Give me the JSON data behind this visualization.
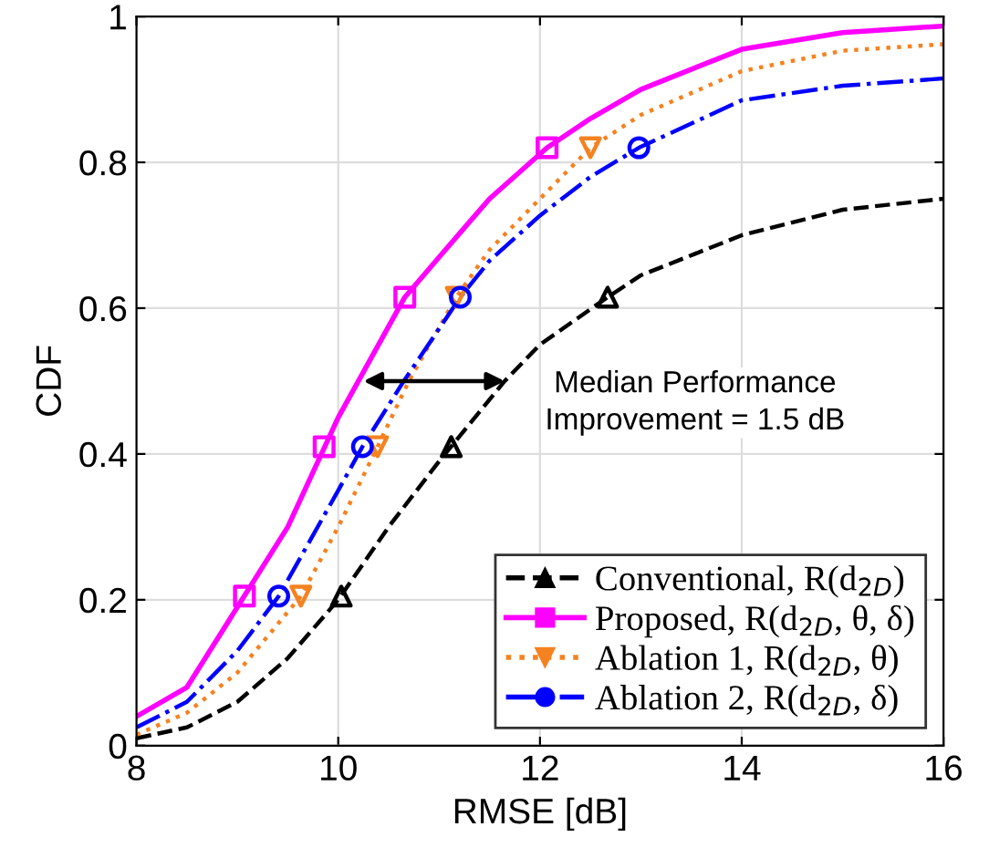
{
  "chart_data": {
    "type": "line",
    "xlabel": "RMSE [dB]",
    "ylabel": "CDF",
    "xlim": [
      8,
      16
    ],
    "ylim": [
      0,
      1
    ],
    "xticks": [
      8,
      10,
      12,
      14,
      16
    ],
    "yticks": [
      0,
      0.2,
      0.4,
      0.6,
      0.8,
      1
    ],
    "grid": true,
    "legend": "bottom right",
    "annotations": [
      {
        "text": "Median Performance\nImprovement = 1.5 dB",
        "x": 11.7,
        "y": 0.5
      }
    ],
    "series": [
      {
        "name": "Conventional, R(d$_{2D}$)",
        "color": "#000000",
        "line_style": "dashed",
        "x": [
          8,
          8.5,
          9,
          9.5,
          10,
          10.5,
          11,
          11.65,
          12,
          12.67,
          13,
          14,
          15,
          16
        ],
        "values": [
          0.01,
          0.025,
          0.06,
          0.12,
          0.2,
          0.3,
          0.39,
          0.5,
          0.55,
          0.615,
          0.645,
          0.7,
          0.735,
          0.75
        ]
      },
      {
        "name": "Proposed, R(d$_{2D}$, θ, δ)",
        "color": "#ff00ff",
        "line_style": "solid",
        "x": [
          8,
          8.5,
          9,
          9.5,
          10,
          10.2,
          10.66,
          11,
          11.5,
          12.07,
          12.5,
          13,
          14,
          15,
          16
        ],
        "values": [
          0.04,
          0.08,
          0.19,
          0.3,
          0.45,
          0.5,
          0.615,
          0.67,
          0.75,
          0.82,
          0.86,
          0.9,
          0.955,
          0.978,
          0.987
        ]
      },
      {
        "name": "Ablation 1, R(d$_{2D}$, θ)",
        "color": "#f58220",
        "line_style": "dotted",
        "x": [
          8,
          8.5,
          9,
          9.63,
          10,
          10.39,
          10.7,
          11.17,
          11.5,
          12,
          12.5,
          13,
          14,
          15,
          16
        ],
        "values": [
          0.015,
          0.045,
          0.1,
          0.205,
          0.3,
          0.41,
          0.5,
          0.615,
          0.68,
          0.75,
          0.82,
          0.865,
          0.925,
          0.953,
          0.962
        ]
      },
      {
        "name": "Ablation 2, R(d$_{2D}$, δ)",
        "color": "#0000ff",
        "line_style": "dashdot",
        "x": [
          8,
          8.5,
          9,
          9.41,
          10,
          10.24,
          10.65,
          11.21,
          11.5,
          12,
          12.5,
          12.98,
          14,
          15,
          16
        ],
        "values": [
          0.025,
          0.06,
          0.13,
          0.205,
          0.35,
          0.41,
          0.5,
          0.615,
          0.665,
          0.727,
          0.78,
          0.82,
          0.885,
          0.905,
          0.915
        ]
      },
      {
        "type": "scatter",
        "color": "#000000",
        "marker": "triangle",
        "x": [
          10.03,
          11.12,
          12.67
        ],
        "values": [
          0.205,
          0.41,
          0.615
        ]
      },
      {
        "type": "scatter",
        "color": "#ff00ff",
        "marker": "square",
        "x": [
          9.07,
          9.86,
          10.66,
          12.07
        ],
        "values": [
          0.205,
          0.41,
          0.615,
          0.82
        ]
      },
      {
        "type": "scatter",
        "color": "#f58220",
        "marker": "triangle_down",
        "x": [
          9.63,
          10.39,
          11.17,
          12.5
        ],
        "values": [
          0.205,
          0.41,
          0.615,
          0.82
        ]
      },
      {
        "type": "scatter",
        "color": "#0000ff",
        "marker": "circle",
        "x": [
          9.41,
          10.24,
          11.21,
          12.98
        ],
        "values": [
          0.205,
          0.41,
          0.615,
          0.82
        ]
      }
    ]
  }
}
